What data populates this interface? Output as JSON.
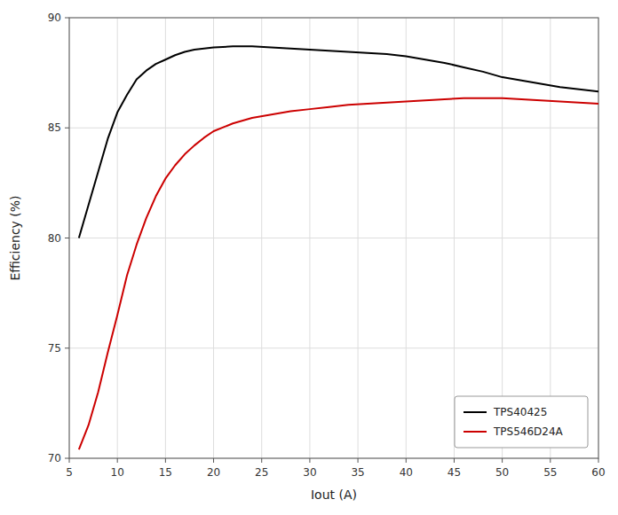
{
  "chart_data": {
    "type": "line",
    "xlabel": "Iout (A)",
    "ylabel": "Efficiency (%)",
    "x": [
      6,
      7,
      8,
      9,
      10,
      11,
      12,
      13,
      14,
      15,
      16,
      17,
      18,
      19,
      20,
      22,
      24,
      26,
      28,
      30,
      32,
      34,
      36,
      38,
      40,
      42,
      44,
      46,
      48,
      50,
      52,
      54,
      56,
      58,
      60
    ],
    "series": [
      {
        "name": "TPS40425",
        "color": "#000000",
        "values": [
          80.0,
          81.5,
          83.0,
          84.5,
          85.7,
          86.5,
          87.2,
          87.6,
          87.9,
          88.1,
          88.3,
          88.45,
          88.55,
          88.6,
          88.65,
          88.7,
          88.7,
          88.65,
          88.6,
          88.55,
          88.5,
          88.45,
          88.4,
          88.35,
          88.25,
          88.1,
          87.95,
          87.75,
          87.55,
          87.3,
          87.15,
          87.0,
          86.85,
          86.75,
          86.65
        ]
      },
      {
        "name": "TPS546D24A",
        "color": "#cc0000",
        "values": [
          70.4,
          71.5,
          73.0,
          74.8,
          76.5,
          78.3,
          79.7,
          80.9,
          81.9,
          82.7,
          83.3,
          83.8,
          84.2,
          84.55,
          84.85,
          85.2,
          85.45,
          85.6,
          85.75,
          85.85,
          85.95,
          86.05,
          86.1,
          86.15,
          86.2,
          86.25,
          86.3,
          86.35,
          86.35,
          86.35,
          86.3,
          86.25,
          86.2,
          86.15,
          86.1
        ]
      }
    ],
    "xlim": [
      5,
      60
    ],
    "ylim": [
      70,
      90
    ],
    "xticks": [
      5,
      10,
      15,
      20,
      25,
      30,
      35,
      40,
      45,
      50,
      55,
      60
    ],
    "yticks": [
      70,
      75,
      80,
      85,
      90
    ],
    "grid": true,
    "legend": "lower right"
  }
}
